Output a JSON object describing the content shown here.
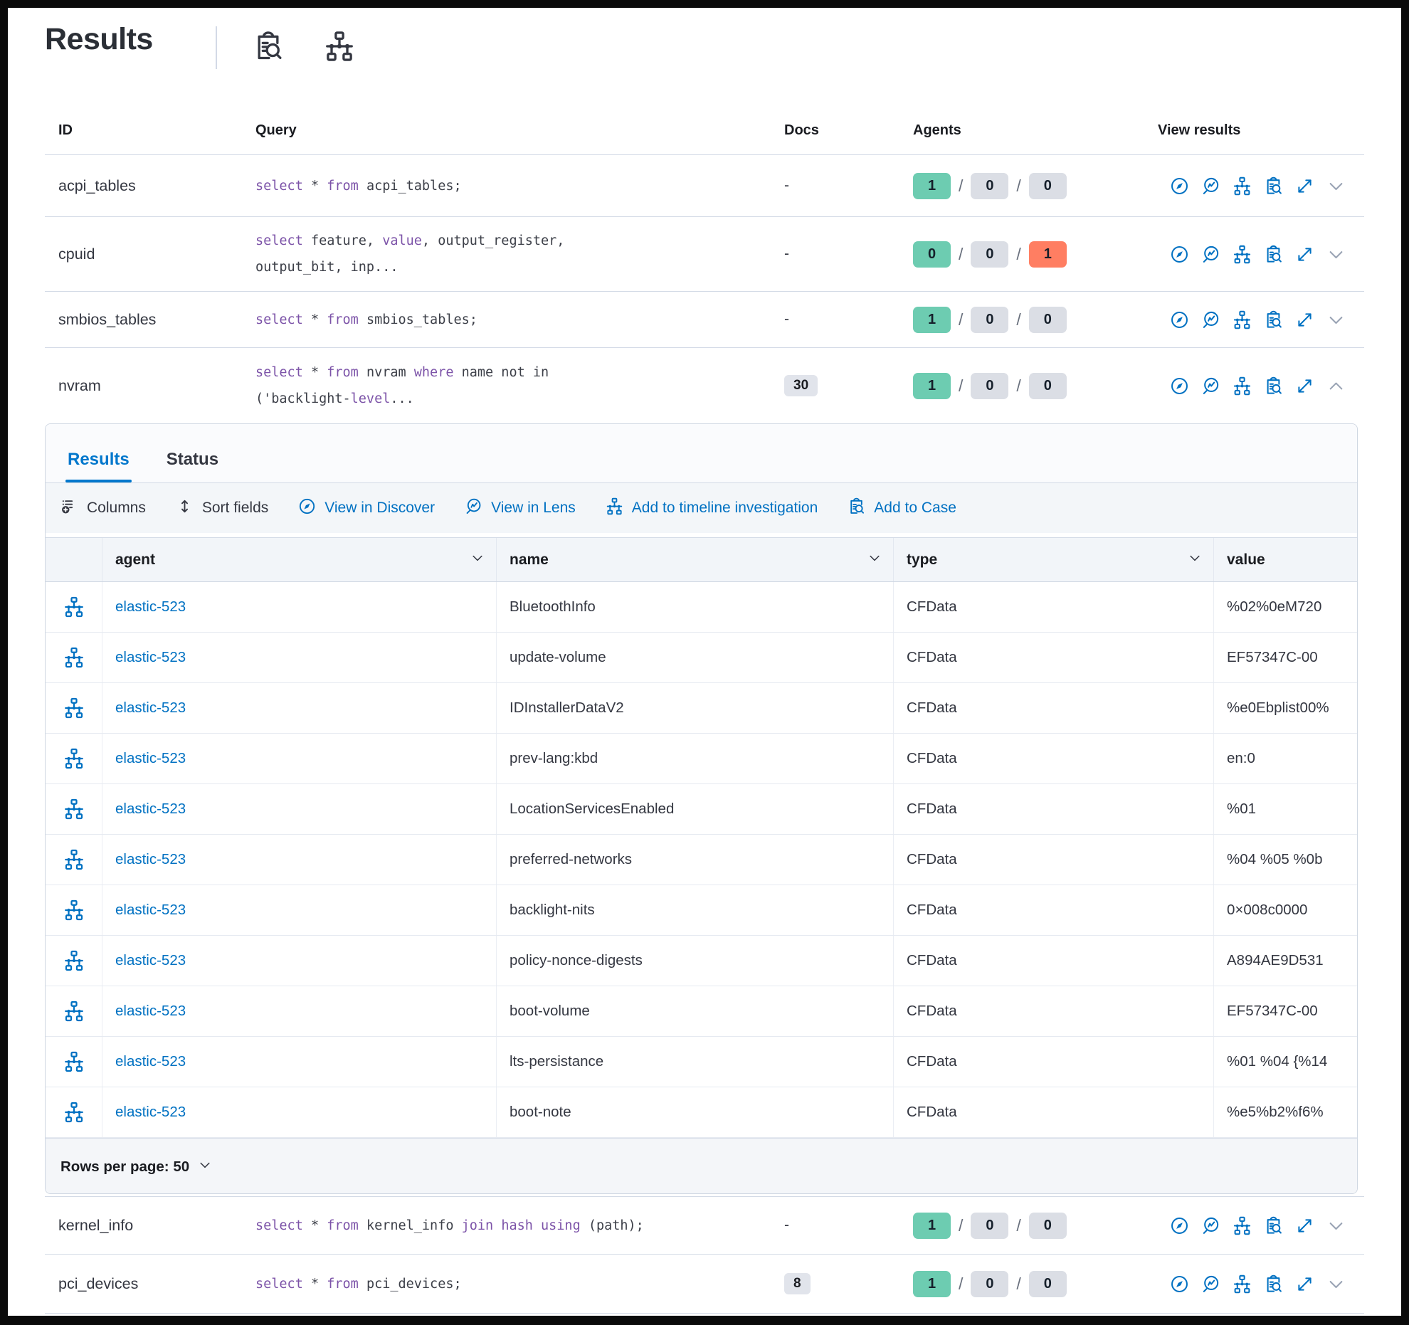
{
  "page": {
    "title": "Results"
  },
  "header": {
    "icons": [
      {
        "name": "inspect-icon"
      },
      {
        "name": "timeline-icon"
      }
    ]
  },
  "colors": {
    "accent_blue": "#0071C2",
    "tab_blue": "#0077CC",
    "keyword_purple": "#7C53A8",
    "green_badge": "#6DCCB1",
    "gray_badge": "#DBDEE5",
    "red_badge": "#FF7E62",
    "docs_badge": "#E1E4EB",
    "dark_text": "#343741"
  },
  "results_table": {
    "columns": [
      "ID",
      "Query",
      "Docs",
      "Agents",
      "View results"
    ],
    "action_icons": [
      "discover-icon",
      "lens-icon",
      "timeline-icon",
      "case-icon",
      "expand-icon"
    ],
    "rows": [
      {
        "id": "acpi_tables",
        "docs": "-",
        "docs_is_badge": false,
        "expanded": false,
        "query": [
          [
            [
              "select",
              1
            ],
            [
              " * ",
              0
            ],
            [
              "from",
              1
            ],
            [
              " acpi_tables;",
              0
            ]
          ]
        ],
        "agents": [
          {
            "value": "1",
            "color": "green"
          },
          {
            "value": "0",
            "color": "gray"
          },
          {
            "value": "0",
            "color": "gray"
          }
        ]
      },
      {
        "id": "cpuid",
        "docs": "-",
        "docs_is_badge": false,
        "expanded": false,
        "query": [
          [
            [
              "select",
              1
            ],
            [
              " feature, ",
              0
            ],
            [
              "value",
              1
            ],
            [
              ", output_register,",
              0
            ]
          ],
          [
            [
              "output_bit, inp...",
              0
            ]
          ]
        ],
        "agents": [
          {
            "value": "0",
            "color": "green"
          },
          {
            "value": "0",
            "color": "gray"
          },
          {
            "value": "1",
            "color": "red"
          }
        ]
      },
      {
        "id": "smbios_tables",
        "docs": "-",
        "docs_is_badge": false,
        "expanded": false,
        "query": [
          [
            [
              "select",
              1
            ],
            [
              " * ",
              0
            ],
            [
              "from",
              1
            ],
            [
              " smbios_tables;",
              0
            ]
          ]
        ],
        "agents": [
          {
            "value": "1",
            "color": "green"
          },
          {
            "value": "0",
            "color": "gray"
          },
          {
            "value": "0",
            "color": "gray"
          }
        ]
      },
      {
        "id": "nvram",
        "docs": "30",
        "docs_is_badge": true,
        "expanded": true,
        "query": [
          [
            [
              "select",
              1
            ],
            [
              " * ",
              0
            ],
            [
              "from",
              1
            ],
            [
              " nvram ",
              0
            ],
            [
              "where",
              1
            ],
            [
              " name not in",
              0
            ]
          ],
          [
            [
              "('backlight-",
              0
            ],
            [
              "level",
              1
            ],
            [
              "...",
              0
            ]
          ]
        ],
        "agents": [
          {
            "value": "1",
            "color": "green"
          },
          {
            "value": "0",
            "color": "gray"
          },
          {
            "value": "0",
            "color": "gray"
          }
        ]
      },
      {
        "id": "kernel_info",
        "docs": "-",
        "docs_is_badge": false,
        "expanded": false,
        "query": [
          [
            [
              "select",
              1
            ],
            [
              " * ",
              0
            ],
            [
              "from",
              1
            ],
            [
              " kernel_info ",
              0
            ],
            [
              "join",
              1
            ],
            [
              " ",
              0
            ],
            [
              "hash",
              1
            ],
            [
              " ",
              0
            ],
            [
              "using",
              1
            ],
            [
              " (path);",
              0
            ]
          ]
        ],
        "agents": [
          {
            "value": "1",
            "color": "green"
          },
          {
            "value": "0",
            "color": "gray"
          },
          {
            "value": "0",
            "color": "gray"
          }
        ]
      },
      {
        "id": "pci_devices",
        "docs": "8",
        "docs_is_badge": true,
        "expanded": false,
        "query": [
          [
            [
              "select",
              1
            ],
            [
              " * ",
              0
            ],
            [
              "from",
              1
            ],
            [
              " pci_devices;",
              0
            ]
          ]
        ],
        "agents": [
          {
            "value": "1",
            "color": "green"
          },
          {
            "value": "0",
            "color": "gray"
          },
          {
            "value": "0",
            "color": "gray"
          }
        ]
      }
    ]
  },
  "expanded_panel": {
    "parent_row": "nvram",
    "tabs": [
      {
        "label": "Results",
        "active": true
      },
      {
        "label": "Status",
        "active": false
      }
    ],
    "toolbar": [
      {
        "icon": "columns-icon",
        "label": "Columns",
        "blue": false
      },
      {
        "icon": "sort-icon",
        "label": "Sort fields",
        "blue": false
      },
      {
        "icon": "discover-icon",
        "label": "View in Discover",
        "blue": true
      },
      {
        "icon": "lens-icon",
        "label": "View in Lens",
        "blue": true
      },
      {
        "icon": "timeline-icon",
        "label": "Add to timeline investigation",
        "blue": true
      },
      {
        "icon": "case-icon",
        "label": "Add to Case",
        "blue": true
      }
    ],
    "grid": {
      "columns": [
        {
          "label": "agent"
        },
        {
          "label": "name"
        },
        {
          "label": "type"
        },
        {
          "label": "value"
        }
      ],
      "row_icon": "timeline-icon",
      "rows": [
        {
          "agent": "elastic-523",
          "name": "BluetoothInfo",
          "type": "CFData",
          "value": "%02%0eM720"
        },
        {
          "agent": "elastic-523",
          "name": "update-volume",
          "type": "CFData",
          "value": "EF57347C-00"
        },
        {
          "agent": "elastic-523",
          "name": "IDInstallerDataV2",
          "type": "CFData",
          "value": "%e0Ebplist00%"
        },
        {
          "agent": "elastic-523",
          "name": "prev-lang:kbd",
          "type": "CFData",
          "value": "en:0"
        },
        {
          "agent": "elastic-523",
          "name": "LocationServicesEnabled",
          "type": "CFData",
          "value": "%01"
        },
        {
          "agent": "elastic-523",
          "name": "preferred-networks",
          "type": "CFData",
          "value": "%04 %05 %0b"
        },
        {
          "agent": "elastic-523",
          "name": "backlight-nits",
          "type": "CFData",
          "value": "0×008c0000"
        },
        {
          "agent": "elastic-523",
          "name": "policy-nonce-digests",
          "type": "CFData",
          "value": "A894AE9D531"
        },
        {
          "agent": "elastic-523",
          "name": "boot-volume",
          "type": "CFData",
          "value": "EF57347C-00"
        },
        {
          "agent": "elastic-523",
          "name": "lts-persistance",
          "type": "CFData",
          "value": "%01 %04 {%14"
        },
        {
          "agent": "elastic-523",
          "name": "boot-note",
          "type": "CFData",
          "value": "%e5%b2%f6%"
        }
      ]
    },
    "footer": {
      "rows_per_page_label": "Rows per page: 50"
    }
  }
}
